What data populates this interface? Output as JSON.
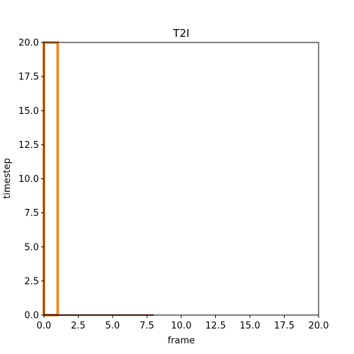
{
  "chart_data": {
    "type": "line",
    "title": "T2I",
    "xlabel": "frame",
    "ylabel": "timestep",
    "xlim": [
      0,
      20
    ],
    "ylim": [
      0,
      20
    ],
    "x_ticks": [
      "0.0",
      "2.5",
      "5.0",
      "7.5",
      "10.0",
      "12.5",
      "15.0",
      "17.5",
      "20.0"
    ],
    "y_ticks": [
      "0.0",
      "2.5",
      "5.0",
      "7.5",
      "10.0",
      "12.5",
      "15.0",
      "17.5",
      "20.0"
    ],
    "grid": false,
    "series": [
      {
        "color": "#ff7f0e",
        "x": [
          0,
          1,
          1,
          0,
          0
        ],
        "y": [
          0,
          0,
          20,
          20,
          0
        ]
      },
      {
        "color": "#8b2b1a",
        "x": [
          0,
          8
        ],
        "y": [
          0,
          0
        ]
      }
    ]
  }
}
